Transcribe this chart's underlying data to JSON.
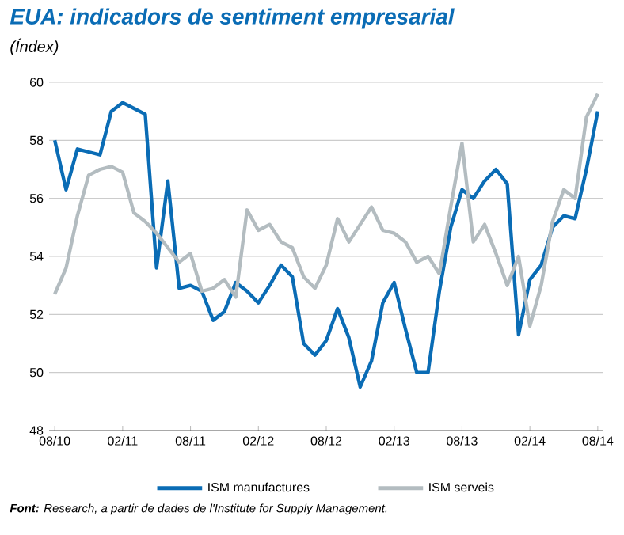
{
  "chart_data": {
    "type": "line",
    "title": "EUA: indicadors de sentiment empresarial",
    "subtitle": "(Índex)",
    "categories": [
      "08/10",
      null,
      null,
      null,
      null,
      null,
      "02/11",
      null,
      null,
      null,
      null,
      null,
      "08/11",
      null,
      null,
      null,
      null,
      null,
      "02/12",
      null,
      null,
      null,
      null,
      null,
      "08/12",
      null,
      null,
      null,
      null,
      null,
      "02/13",
      null,
      null,
      null,
      null,
      null,
      "08/13",
      null,
      null,
      null,
      null,
      null,
      "02/14",
      null,
      null,
      null,
      null,
      null,
      "08/14"
    ],
    "series": [
      {
        "name": "ISM manufactures",
        "color": "#0a6cb5",
        "values": [
          58.0,
          56.3,
          57.7,
          57.6,
          57.5,
          59.0,
          59.3,
          59.1,
          58.9,
          53.6,
          56.6,
          52.9,
          53.0,
          52.8,
          51.8,
          52.1,
          53.1,
          52.8,
          52.4,
          53.0,
          53.7,
          53.3,
          51.0,
          50.6,
          51.1,
          52.2,
          51.2,
          49.5,
          50.4,
          52.4,
          53.1,
          51.5,
          50.0,
          50.0,
          52.8,
          55.0,
          56.3,
          56.0,
          56.6,
          57.0,
          56.5,
          51.3,
          53.2,
          53.7,
          55.0,
          55.4,
          55.3,
          57.0,
          59.0
        ]
      },
      {
        "name": "ISM serveis",
        "color": "#b3bcc0",
        "values": [
          52.7,
          53.6,
          55.4,
          56.8,
          57.0,
          57.1,
          56.9,
          55.5,
          55.2,
          54.8,
          54.3,
          53.8,
          54.1,
          52.8,
          52.9,
          53.2,
          52.6,
          55.6,
          54.9,
          55.1,
          54.5,
          54.3,
          53.3,
          52.9,
          53.7,
          55.3,
          54.5,
          55.1,
          55.7,
          54.9,
          54.8,
          54.5,
          53.8,
          54.0,
          53.4,
          55.7,
          57.9,
          54.5,
          55.1,
          54.1,
          53.0,
          54.0,
          51.6,
          53.0,
          55.2,
          56.3,
          56.0,
          58.8,
          59.6
        ]
      }
    ],
    "ylim": [
      48,
      60
    ],
    "yticks": [
      48,
      50,
      52,
      54,
      56,
      58,
      60
    ],
    "grid": "y",
    "legend": "bottom",
    "line_style": "solid",
    "annotations": [
      "**Font:** Research, a partir de dades de l'Institute for Supply Management."
    ]
  }
}
